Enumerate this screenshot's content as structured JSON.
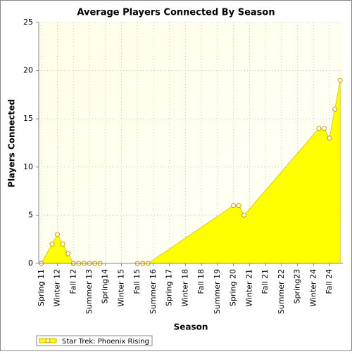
{
  "chart_data": {
    "type": "area",
    "title": "Average Players Connected By Season",
    "x_label": "Season",
    "y_label": "Players Connected",
    "categories": [
      "Spring 11",
      null,
      null,
      "Winter 12",
      null,
      null,
      "Fall 12",
      null,
      null,
      "Summer 13",
      null,
      null,
      "Spring14",
      null,
      null,
      "Winter 15",
      null,
      null,
      "Fall 15",
      null,
      null,
      "Summer 16",
      null,
      null,
      "Spring 17",
      null,
      null,
      "Winter 18",
      null,
      null,
      "Fall 18",
      null,
      null,
      "Summer 19",
      null,
      null,
      "Spring 20",
      null,
      null,
      "Winter 21",
      null,
      null,
      "Fall 21",
      null,
      null,
      "Summer 22",
      null,
      null,
      "Spring23",
      null,
      null,
      "Winter 24",
      null,
      null,
      "Fall 24",
      null,
      null
    ],
    "series": [
      {
        "name": "Star Trek: Phoenix Rising",
        "color": "#ffff00",
        "values": [
          0,
          null,
          2,
          3,
          2,
          1,
          0,
          0,
          0,
          0,
          0,
          0,
          null,
          null,
          null,
          null,
          null,
          null,
          0,
          0,
          0,
          null,
          null,
          null,
          null,
          null,
          null,
          null,
          null,
          null,
          null,
          null,
          null,
          null,
          null,
          null,
          6,
          6,
          5,
          null,
          null,
          null,
          null,
          null,
          null,
          null,
          null,
          null,
          null,
          null,
          null,
          null,
          14,
          14,
          13,
          16,
          19
        ]
      }
    ],
    "ylim": [
      0,
      25
    ],
    "yticks": [
      0,
      5,
      10,
      15,
      20,
      25
    ],
    "grid": true
  }
}
